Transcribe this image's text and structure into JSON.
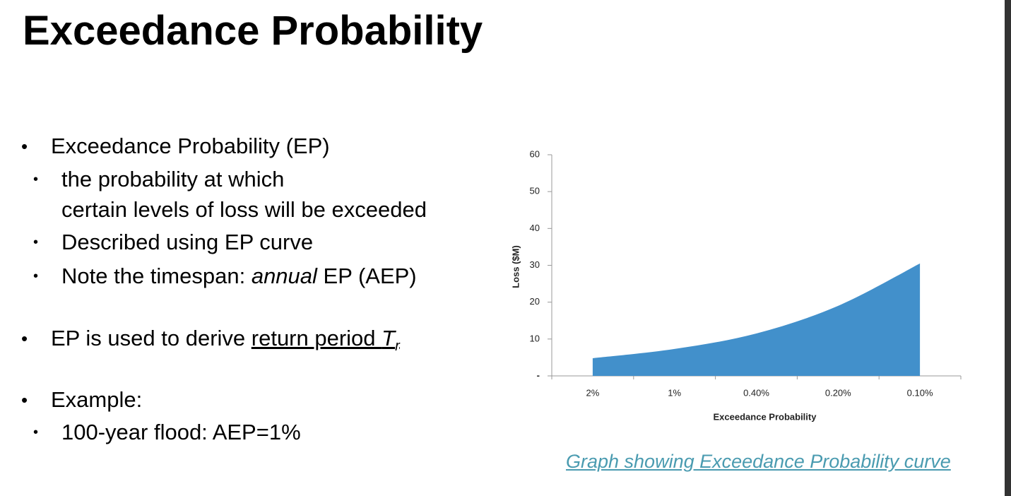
{
  "slide": {
    "title": "Exceedance Probability",
    "bullets": [
      {
        "text": "Exceedance Probability (EP)"
      },
      {
        "lines": [
          "the probability at which",
          "certain levels of loss will be exceeded"
        ]
      },
      {
        "text": "Described using EP curve"
      },
      {
        "parts": [
          "Note the timespan: ",
          "annual",
          " EP (AEP)"
        ]
      },
      {
        "parts": [
          "EP is used to derive ",
          "return period ",
          "T",
          "r"
        ]
      },
      {
        "text": "Example:"
      },
      {
        "text": "100-year flood: AEP=1%"
      }
    ],
    "caption": "Graph showing Exceedance Probability curve"
  },
  "chart_data": {
    "type": "area",
    "xlabel": "Exceedance Probability",
    "ylabel": "Loss ($M)",
    "categories": [
      "2%",
      "1%",
      "0.40%",
      "0.20%",
      "0.10%"
    ],
    "values": [
      4.8,
      7.3,
      11.5,
      19,
      30.5
    ],
    "color": "#4290cb",
    "ylim": [
      0,
      60
    ],
    "yticks": [
      {
        "value": 0,
        "label": "-"
      },
      10,
      20,
      30,
      40,
      50,
      60
    ]
  }
}
